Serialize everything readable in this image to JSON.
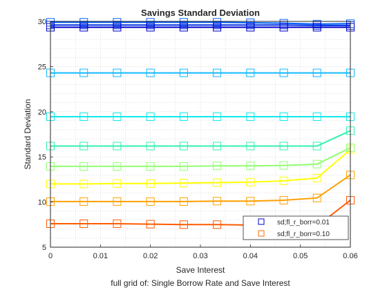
{
  "chart_data": {
    "type": "line",
    "title": "Savings Standard Deviation",
    "xlabel": "Save Interest",
    "ylabel": "Standard Deviation",
    "caption": "full grid of: Single Borrow Rate and Save Interest",
    "xlim": [
      0,
      0.06
    ],
    "ylim": [
      5,
      30
    ],
    "xticks": [
      0,
      0.01,
      0.02,
      0.03,
      0.04,
      0.05,
      0.06
    ],
    "xtick_labels": [
      "0",
      "0.01",
      "0.02",
      "0.03",
      "0.04",
      "0.05",
      "0.06"
    ],
    "yticks": [
      5,
      10,
      15,
      20,
      25,
      30
    ],
    "ytick_labels": [
      "5",
      "10",
      "15",
      "20",
      "25",
      "30"
    ],
    "grid": "dotted",
    "marker": "square",
    "legend_position": "bottom-right",
    "legend": [
      {
        "label": "sd;fl_r_borr=0.01",
        "color": "#0000c8"
      },
      {
        "label": "sd;fl_r_borr=0.10",
        "color": "#ff6a00"
      }
    ],
    "x": [
      0,
      0.00667,
      0.01333,
      0.02,
      0.02667,
      0.03333,
      0.04,
      0.04667,
      0.05333,
      0.06
    ],
    "series": [
      {
        "color": "#ff5a00",
        "values": [
          7.6,
          7.6,
          7.6,
          7.55,
          7.5,
          7.5,
          7.45,
          7.35,
          7.35,
          10.2
        ]
      },
      {
        "color": "#ffa000",
        "values": [
          10.05,
          10.05,
          10.05,
          10.05,
          10.05,
          10.1,
          10.1,
          10.2,
          10.45,
          13.0
        ]
      },
      {
        "color": "#ffff00",
        "values": [
          12.0,
          12.0,
          12.05,
          12.05,
          12.1,
          12.15,
          12.2,
          12.35,
          12.65,
          15.8
        ]
      },
      {
        "color": "#90ff70",
        "values": [
          13.95,
          13.95,
          13.95,
          13.95,
          13.95,
          14.0,
          14.0,
          14.05,
          14.2,
          16.0
        ]
      },
      {
        "color": "#30f0b0",
        "values": [
          16.2,
          16.2,
          16.2,
          16.2,
          16.2,
          16.2,
          16.2,
          16.2,
          16.2,
          17.9
        ]
      },
      {
        "color": "#10e8e8",
        "values": [
          19.45,
          19.45,
          19.45,
          19.45,
          19.45,
          19.45,
          19.45,
          19.45,
          19.45,
          19.45
        ]
      },
      {
        "color": "#10b8ff",
        "values": [
          24.3,
          24.3,
          24.3,
          24.3,
          24.3,
          24.3,
          24.3,
          24.3,
          24.3,
          24.3
        ]
      },
      {
        "color": "#0060ff",
        "values": [
          29.9,
          29.9,
          29.9,
          29.9,
          29.9,
          29.9,
          29.85,
          29.8,
          29.7,
          29.75
        ]
      },
      {
        "color": "#0030e0",
        "values": [
          29.6,
          29.6,
          29.6,
          29.6,
          29.6,
          29.6,
          29.6,
          29.6,
          29.55,
          29.55
        ]
      },
      {
        "color": "#0000c8",
        "values": [
          29.35,
          29.35,
          29.35,
          29.35,
          29.35,
          29.35,
          29.35,
          29.35,
          29.35,
          29.35
        ]
      }
    ]
  }
}
